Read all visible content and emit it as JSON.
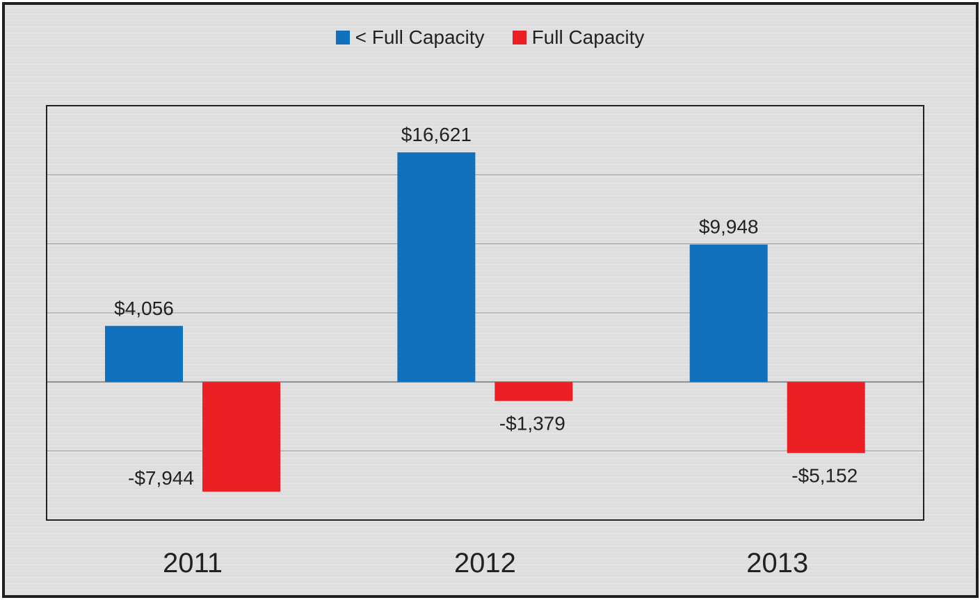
{
  "chart_data": {
    "type": "bar",
    "title": "",
    "xlabel": "",
    "ylabel": "",
    "categories": [
      "2011",
      "2012",
      "2013"
    ],
    "series": [
      {
        "name": "< Full Capacity",
        "color": "#1170bb",
        "values": [
          4056,
          16621,
          9948
        ],
        "labels": [
          "$4,056",
          "$16,621",
          "$9,948"
        ]
      },
      {
        "name": "Full Capacity",
        "color": "#ec1f27",
        "values": [
          -7944,
          -1379,
          -5152
        ],
        "labels": [
          "-$7,944",
          "-$1,379",
          "-$5,152"
        ]
      }
    ],
    "ylim": [
      -10000,
      20000
    ],
    "ytick_step": 5000,
    "y_tick_labels_shown": false,
    "grid": true,
    "legend_position": "top-center"
  }
}
